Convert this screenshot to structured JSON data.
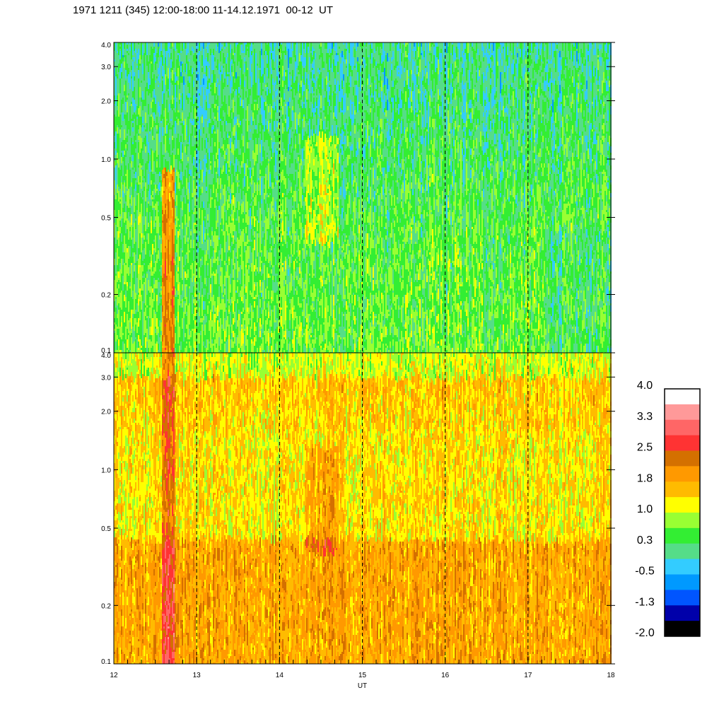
{
  "title": "1971 1211 (345) 12:00-18:00 11-14.12.1971  00-12  UT",
  "chart_data": {
    "type": "heatmap",
    "panels": [
      {
        "name": "upper",
        "dominant": "green-cyan",
        "ylim": [
          0.1,
          4.0
        ],
        "yscale": "log"
      },
      {
        "name": "lower",
        "dominant": "orange-yellow",
        "ylim": [
          0.1,
          4.0
        ],
        "yscale": "log"
      }
    ],
    "xlabel": "UT",
    "xlim": [
      12,
      18
    ],
    "x_ticks": [
      "12",
      "13",
      "14",
      "15",
      "16",
      "17",
      "18"
    ],
    "x_tick_values": [
      12,
      13,
      14,
      15,
      16,
      17,
      18
    ],
    "y_ticks": [
      "4.0",
      "3.0",
      "2.0",
      "1.0",
      "0.5",
      "0.2",
      "0.1"
    ],
    "y_tick_values": [
      4.0,
      3.0,
      2.0,
      1.0,
      0.5,
      0.2,
      0.1
    ],
    "dashed_hour_markers": [
      13,
      14,
      15,
      16,
      17
    ],
    "colorbar": {
      "labels": [
        "4.0",
        "3.3",
        "2.5",
        "1.8",
        "1.0",
        "0.3",
        "-0.5",
        "-1.3",
        "-2.0"
      ],
      "colors": [
        "#ffffff",
        "#ff9999",
        "#ff6666",
        "#ff3333",
        "#d47000",
        "#ff9900",
        "#ffbb00",
        "#ffff00",
        "#99ff33",
        "#33ee33",
        "#55dd88",
        "#33ccff",
        "#0099ff",
        "#0055ff",
        "#0000aa",
        "#000000"
      ]
    }
  }
}
